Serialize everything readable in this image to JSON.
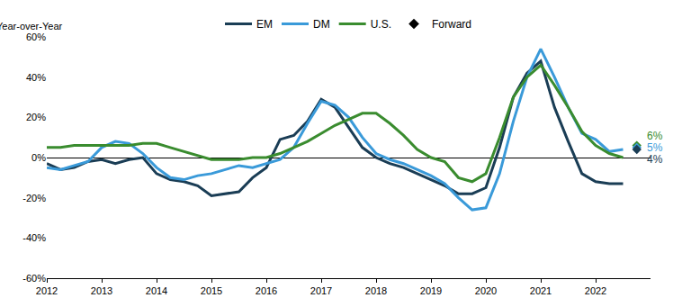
{
  "chart_data": {
    "type": "line",
    "ylabel": "Year-over-Year",
    "x": [
      2012,
      2012.25,
      2012.5,
      2012.75,
      2013,
      2013.25,
      2013.5,
      2013.75,
      2014,
      2014.25,
      2014.5,
      2014.75,
      2015,
      2015.25,
      2015.5,
      2015.75,
      2016,
      2016.25,
      2016.5,
      2016.75,
      2017,
      2017.25,
      2017.5,
      2017.75,
      2018,
      2018.25,
      2018.5,
      2018.75,
      2019,
      2019.25,
      2019.5,
      2019.75,
      2020,
      2020.25,
      2020.5,
      2020.75,
      2021,
      2021.25,
      2021.5,
      2021.75,
      2022,
      2022.25,
      2022.5
    ],
    "series": [
      {
        "name": "EM",
        "color": "#1a3d55",
        "values": [
          -3,
          -6,
          -5,
          -2,
          -1,
          -3,
          -1,
          0,
          -8,
          -11,
          -12,
          -14,
          -19,
          -18,
          -17,
          -10,
          -5,
          9,
          11,
          18,
          29,
          25,
          15,
          5,
          0,
          -3,
          -5,
          -8,
          -11,
          -14,
          -18,
          -18,
          -15,
          5,
          30,
          42,
          48,
          25,
          8,
          -8,
          -12,
          -13,
          -13
        ]
      },
      {
        "name": "DM",
        "color": "#3a9ad9",
        "values": [
          -5,
          -6,
          -4,
          -2,
          5,
          8,
          7,
          2,
          -5,
          -10,
          -11,
          -9,
          -8,
          -6,
          -4,
          -5,
          -3,
          -1,
          5,
          17,
          28,
          26,
          20,
          10,
          2,
          -1,
          -3,
          -6,
          -9,
          -13,
          -20,
          -26,
          -25,
          -8,
          18,
          40,
          54,
          40,
          25,
          12,
          9,
          3,
          4
        ]
      },
      {
        "name": "U.S.",
        "color": "#3a8c2f",
        "values": [
          5,
          5,
          6,
          6,
          6,
          6,
          6,
          7,
          7,
          5,
          3,
          1,
          -1,
          -1,
          -1,
          0,
          0,
          2,
          5,
          8,
          12,
          16,
          19,
          22,
          22,
          17,
          11,
          4,
          0,
          -2,
          -10,
          -12,
          -8,
          10,
          30,
          40,
          46,
          36,
          25,
          13,
          6,
          2,
          0
        ]
      },
      {
        "name": "Forward",
        "type": "scatter",
        "marker": "diamond",
        "color": "#000000",
        "x": [
          2022.75,
          2022.75,
          2022.75
        ],
        "values": [
          6,
          5,
          4
        ],
        "colors": [
          "#3a8c2f",
          "#3a9ad9",
          "#1a3d55"
        ],
        "value_labels": [
          "6%",
          "5%",
          "4%"
        ],
        "data_labels": true
      }
    ],
    "xlim": [
      2012,
      2023
    ],
    "xticks": [
      2012,
      2013,
      2014,
      2015,
      2016,
      2017,
      2018,
      2019,
      2020,
      2021,
      2022
    ],
    "ylim": [
      -60,
      60
    ],
    "yticks": [
      {
        "value": -60,
        "label": "-60%"
      },
      {
        "value": -40,
        "label": "-40%"
      },
      {
        "value": -20,
        "label": "-20%"
      },
      {
        "value": 0,
        "label": "0%"
      },
      {
        "value": 20,
        "label": "20%"
      },
      {
        "value": 40,
        "label": "40%"
      },
      {
        "value": 60,
        "label": "60%"
      }
    ],
    "grid": false,
    "legend": "top"
  }
}
